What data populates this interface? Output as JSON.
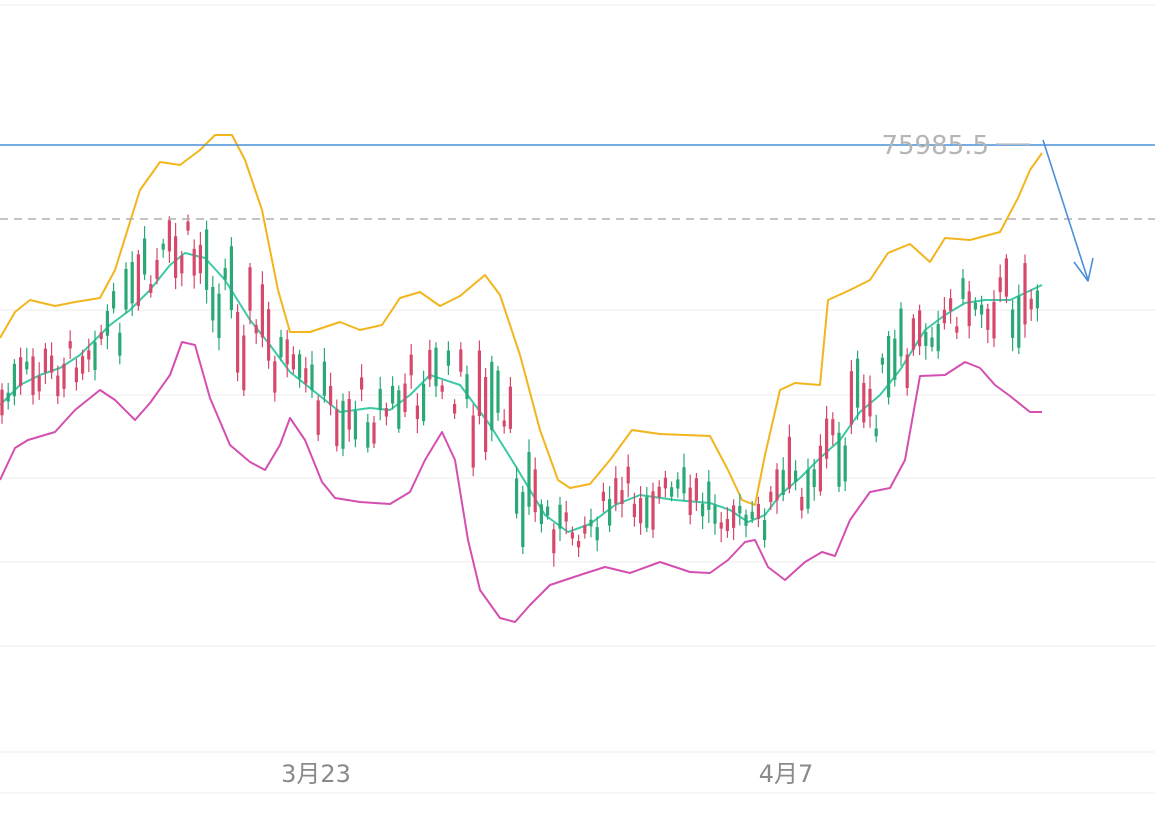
{
  "chart_data": {
    "type": "candlestick",
    "x_tick_labels": [
      "3月23",
      "4月7"
    ],
    "price_label": "75985.5",
    "resistance_level": 75985.5,
    "colors": {
      "up": "#2aa876",
      "down": "#d6496a",
      "upper_band": "#f2b51d",
      "middle_band": "#3cc9a8",
      "lower_band": "#d44fb0",
      "resistance_line": "#4a90d9",
      "arrow": "#4a90d9",
      "dashed_line": "#b0b0b0",
      "grid": "#ececec",
      "axis_text": "#8a8a8a"
    },
    "grid": true,
    "has_dashed_current_price_line": true,
    "has_down_arrow": true
  }
}
